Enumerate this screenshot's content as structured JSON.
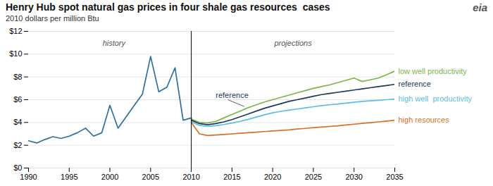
{
  "chart_data": {
    "type": "line",
    "title": "Henry Hub spot natural gas prices in four shale gas resources  cases",
    "subtitle": "2010 dollars per million Btu",
    "xlim": [
      1990,
      2035
    ],
    "xticks": [
      1990,
      1995,
      2000,
      2005,
      2010,
      2015,
      2020,
      2025,
      2030,
      2035
    ],
    "ylim": [
      0,
      12
    ],
    "yticks": [
      {
        "value": 0,
        "label": "$0"
      },
      {
        "value": 2,
        "label": "$2"
      },
      {
        "value": 4,
        "label": "$4"
      },
      {
        "value": 6,
        "label": "$6"
      },
      {
        "value": 8,
        "label": "$8"
      },
      {
        "value": 10,
        "label": "$10"
      },
      {
        "value": 12,
        "label": "$12"
      }
    ],
    "grid": true,
    "divider": 2010,
    "series": [
      {
        "color": "#2e6e9e",
        "x": [
          1990,
          1991,
          1992,
          1993,
          1994,
          1995,
          1996,
          1997,
          1998,
          1999,
          2000,
          2001,
          2002,
          2003,
          2004,
          2005,
          2006,
          2007,
          2008,
          2009,
          2010
        ],
        "values": [
          2.4,
          2.2,
          2.5,
          2.75,
          2.6,
          2.8,
          3.1,
          3.5,
          2.8,
          3.1,
          5.5,
          3.5,
          4.5,
          5.5,
          6.5,
          9.8,
          6.7,
          7.1,
          8.8,
          4.2,
          4.4
        ]
      },
      {
        "name": "low well productivity",
        "color": "#7ab648",
        "x": [
          2010,
          2011,
          2012,
          2013,
          2014,
          2015,
          2016,
          2017,
          2018,
          2019,
          2020,
          2021,
          2022,
          2023,
          2024,
          2025,
          2026,
          2027,
          2028,
          2029,
          2030,
          2031,
          2032,
          2033,
          2034,
          2035
        ],
        "values": [
          4.3,
          4.0,
          3.95,
          4.1,
          4.4,
          4.7,
          5.0,
          5.3,
          5.55,
          5.8,
          6.0,
          6.2,
          6.4,
          6.6,
          6.8,
          7.0,
          7.15,
          7.3,
          7.5,
          7.7,
          7.9,
          7.6,
          7.75,
          7.9,
          8.2,
          8.5
        ]
      },
      {
        "name": "reference",
        "color": "#1a3a5c",
        "x": [
          2010,
          2011,
          2012,
          2013,
          2014,
          2015,
          2016,
          2017,
          2018,
          2019,
          2020,
          2021,
          2022,
          2023,
          2024,
          2025,
          2026,
          2027,
          2028,
          2029,
          2030,
          2031,
          2032,
          2033,
          2034,
          2035
        ],
        "values": [
          4.2,
          3.9,
          3.8,
          3.9,
          4.05,
          4.25,
          4.5,
          4.75,
          5.0,
          5.25,
          5.45,
          5.65,
          5.85,
          6.0,
          6.15,
          6.3,
          6.45,
          6.55,
          6.65,
          6.75,
          6.85,
          6.95,
          7.05,
          7.15,
          7.25,
          7.35
        ]
      },
      {
        "name": "high well  productivity",
        "color": "#5bbde0",
        "x": [
          2010,
          2011,
          2012,
          2013,
          2014,
          2015,
          2016,
          2017,
          2018,
          2019,
          2020,
          2021,
          2022,
          2023,
          2024,
          2025,
          2026,
          2027,
          2028,
          2029,
          2030,
          2031,
          2032,
          2033,
          2034,
          2035
        ],
        "values": [
          4.05,
          3.75,
          3.65,
          3.72,
          3.82,
          3.95,
          4.1,
          4.28,
          4.48,
          4.68,
          4.85,
          4.98,
          5.08,
          5.18,
          5.28,
          5.38,
          5.48,
          5.55,
          5.62,
          5.7,
          5.78,
          5.85,
          5.9,
          5.95,
          6.0,
          6.05
        ]
      },
      {
        "name": "high resources",
        "color": "#d4722a",
        "x": [
          2010,
          2011,
          2012,
          2013,
          2014,
          2015,
          2016,
          2017,
          2018,
          2019,
          2020,
          2021,
          2022,
          2023,
          2024,
          2025,
          2026,
          2027,
          2028,
          2029,
          2030,
          2031,
          2032,
          2033,
          2034,
          2035
        ],
        "values": [
          4.0,
          3.0,
          2.85,
          2.9,
          2.95,
          3.0,
          3.05,
          3.1,
          3.15,
          3.2,
          3.25,
          3.3,
          3.35,
          3.42,
          3.48,
          3.55,
          3.6,
          3.65,
          3.7,
          3.78,
          3.85,
          3.92,
          3.98,
          4.05,
          4.12,
          4.2
        ]
      }
    ],
    "annotations": [
      {
        "text": "history",
        "x": 2000.5,
        "y": 11.2
      },
      {
        "text": "projections",
        "x": 2022.5,
        "y": 11.2
      },
      {
        "text": "reference",
        "x": 2013.0,
        "y": 6.15,
        "color": "#1a3a5c",
        "arrow_from": [
          2014.5,
          6.0
        ],
        "arrow_to": [
          2016.5,
          5.4
        ]
      },
      {
        "text": "eia"
      }
    ]
  }
}
